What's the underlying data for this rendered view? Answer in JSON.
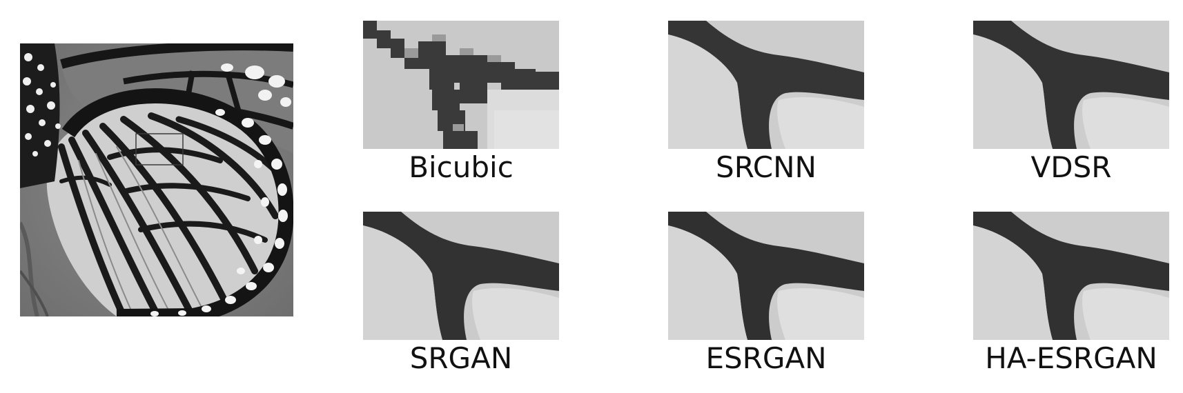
{
  "figure": {
    "main_image": {
      "subject": "butterfly-wing-grayscale"
    },
    "crops": [
      {
        "id": "bicubic",
        "label": "Bicubic"
      },
      {
        "id": "srcnn",
        "label": "SRCNN"
      },
      {
        "id": "vdsr",
        "label": "VDSR"
      },
      {
        "id": "srgan",
        "label": "SRGAN"
      },
      {
        "id": "esrgan",
        "label": "ESRGAN"
      },
      {
        "id": "ha-esrgan",
        "label": "HA-ESRGAN"
      }
    ]
  }
}
